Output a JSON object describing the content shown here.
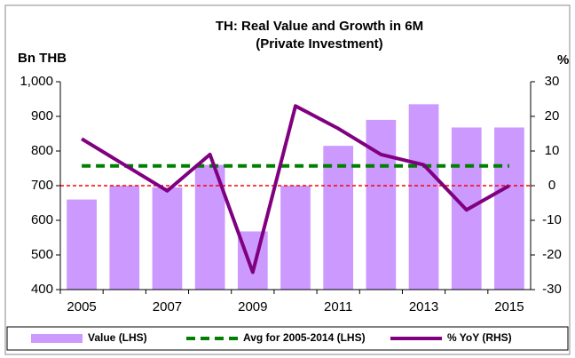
{
  "chart_data": {
    "type": "bar_line",
    "title": "TH: Real Value and Growth in 6M",
    "subtitle": "(Private Investment)",
    "y_label": "Bn THB",
    "y2_label": "%",
    "categories": [
      "2005",
      null,
      "2007",
      null,
      "2009",
      null,
      "2011",
      null,
      "2013",
      null,
      "2015"
    ],
    "series": [
      {
        "name": "Value (LHS)",
        "type": "bar",
        "color": "#cc99ff",
        "values": [
          660,
          700,
          695,
          760,
          568,
          700,
          815,
          890,
          935,
          868,
          868
        ]
      },
      {
        "name": "Avg for 2005-2014 (LHS)",
        "type": "dashed-line",
        "color": "#008000",
        "values": [
          757,
          757,
          757,
          757,
          757,
          757,
          757,
          757,
          757,
          757,
          757
        ]
      },
      {
        "name": "% YoY (RHS)",
        "type": "line",
        "axis": "y2",
        "color": "#800080",
        "values": [
          13.5,
          6,
          -1.5,
          9,
          -25,
          23,
          16.5,
          9,
          6,
          -7,
          0
        ]
      }
    ],
    "ylim": [
      400,
      1000
    ],
    "yticks": [
      400,
      500,
      600,
      700,
      800,
      900,
      {
        "value": 1000,
        "label": "1,000"
      }
    ],
    "y2lim": [
      -30,
      30
    ],
    "y2ticks": [
      -30,
      -20,
      -10,
      0,
      10,
      20,
      30
    ],
    "y2_zero_line_color": "#ff0000",
    "legend": "bottom"
  }
}
